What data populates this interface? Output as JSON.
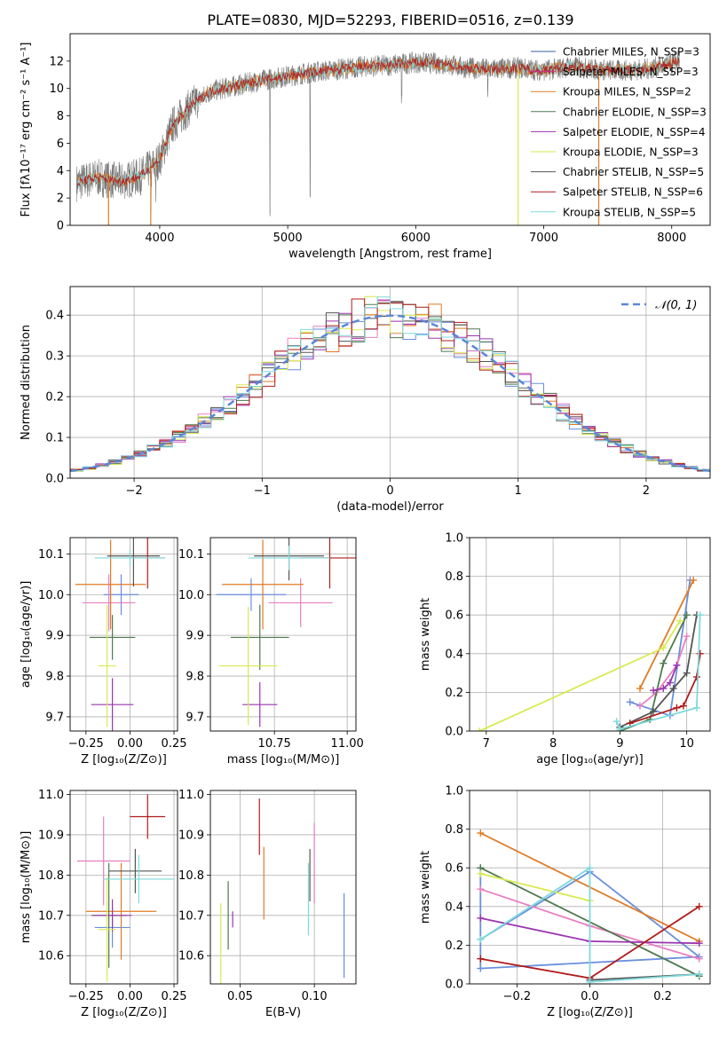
{
  "figure": {
    "title": "PLATE=0830, MJD=52293, FIBERID=0516, z=0.139",
    "colors": [
      "#e07b24",
      "#e07b24",
      "#e07b24",
      "#4f7a4f",
      "#9b35b0",
      "#d9ea52",
      "#555555",
      "#b01c1c",
      "#7fd9dc"
    ]
  },
  "chart_data": [
    {
      "id": "spectrum",
      "type": "line",
      "xlabel": "wavelength [Angstrom, rest frame]",
      "ylabel": "Flux [fλ10⁻¹⁷ erg cm⁻² s⁻¹ A⁻¹]",
      "xlim": [
        3300,
        8300
      ],
      "ylim": [
        0,
        14
      ],
      "xticks": [
        4000,
        5000,
        6000,
        7000,
        8000
      ],
      "yticks": [
        0,
        2,
        4,
        6,
        8,
        10,
        12
      ],
      "grid": false,
      "legend_position": "right",
      "legend": [
        {
          "label": "Chabrier MILES, N_SSP=3",
          "color": "#3b5fa8"
        },
        {
          "label": "Salpeter MILES, N_SSP=3",
          "color": "#d12a8f"
        },
        {
          "label": "Kroupa MILES, N_SSP=2",
          "color": "#e07b24"
        },
        {
          "label": "Chabrier ELODIE, N_SSP=3",
          "color": "#4f7a4f"
        },
        {
          "label": "Salpeter ELODIE, N_SSP=4",
          "color": "#9b35b0"
        },
        {
          "label": "Kroupa ELODIE, N_SSP=3",
          "color": "#d9ea52"
        },
        {
          "label": "Chabrier STELIB, N_SSP=5",
          "color": "#555555"
        },
        {
          "label": "Salpeter STELIB, N_SSP=6",
          "color": "#b01c1c"
        },
        {
          "label": "Kroupa STELIB, N_SSP=5",
          "color": "#7fd9dc"
        }
      ],
      "data_continuum": {
        "x": [
          3350,
          3500,
          3700,
          3850,
          4000,
          4100,
          4250,
          4400,
          4600,
          4800,
          5000,
          5200,
          5400,
          5600,
          5800,
          6000,
          6200,
          6400,
          6600,
          6800,
          7000,
          7200,
          7400,
          7600,
          7800,
          8000,
          8060
        ],
        "y": [
          3.1,
          3.5,
          3.2,
          3.6,
          4.8,
          7.3,
          8.8,
          9.8,
          10.2,
          10.6,
          10.9,
          11.2,
          11.4,
          11.6,
          11.7,
          11.9,
          11.8,
          11.5,
          11.4,
          11.5,
          11.3,
          11.6,
          11.4,
          11.3,
          11.4,
          11.8,
          12.1
        ]
      },
      "absorption_lines": [
        {
          "x": 4861,
          "depth": 10.1
        },
        {
          "x": 5175,
          "depth": 9.3
        },
        {
          "x": 5890,
          "depth": 2.5
        },
        {
          "x": 6563,
          "depth": 2.0
        },
        {
          "x": 3934,
          "depth": 2.3
        },
        {
          "x": 3968,
          "depth": 2.4
        }
      ],
      "masked_ranges": [
        [
          3600,
          3600
        ],
        [
          3930,
          3930
        ],
        [
          6800,
          6800
        ],
        [
          7430,
          7430
        ]
      ]
    },
    {
      "id": "residual-histogram",
      "type": "histogram",
      "xlabel": "(data-model)/error",
      "ylabel": "Normed distribution",
      "xlim": [
        -2.5,
        2.5
      ],
      "ylim": [
        0,
        0.47
      ],
      "xticks": [
        -2,
        -1,
        0,
        1,
        2
      ],
      "yticks": [
        0.0,
        0.1,
        0.2,
        0.3,
        0.4
      ],
      "grid": true,
      "legend_position": "top-right",
      "legend_label": "N(0,1)",
      "reference_curve": "normal(0,1)",
      "bin_width": 0.1,
      "series_colors": [
        "#6a8fdc",
        "#e77fc1",
        "#e07b24",
        "#4f7a4f",
        "#9b35b0",
        "#d9ea52",
        "#555555",
        "#b01c1c",
        "#7fd9dc"
      ]
    },
    {
      "id": "age-vs-Z",
      "type": "errorbar",
      "xlabel": "Z [log₁₀(Z/Z⊙)]",
      "ylabel": "age  [log₁₀(age/yr)]",
      "xlim": [
        -0.34,
        0.27
      ],
      "ylim": [
        9.665,
        10.14
      ],
      "xticks": [
        -0.25,
        0.0,
        0.25
      ],
      "xticklabels": [
        "−0.25",
        "0.00",
        "0.25"
      ],
      "yticks": [
        9.7,
        9.8,
        9.9,
        10.0,
        10.1
      ],
      "grid": true,
      "points": [
        {
          "x": -0.05,
          "y": 10.0,
          "xerr": 0.1,
          "yerr": 0.05,
          "color": "#6a8fdc"
        },
        {
          "x": -0.12,
          "y": 9.98,
          "xerr": 0.15,
          "yerr": 0.07,
          "color": "#e77fc1"
        },
        {
          "x": -0.11,
          "y": 10.025,
          "xerr": 0.2,
          "yerr": 0.11,
          "color": "#e07b24"
        },
        {
          "x": -0.1,
          "y": 9.895,
          "xerr": 0.13,
          "yerr": 0.055,
          "color": "#4f7a4f"
        },
        {
          "x": -0.1,
          "y": 9.73,
          "xerr": 0.12,
          "yerr": 0.065,
          "color": "#9b35b0"
        },
        {
          "x": -0.13,
          "y": 9.825,
          "xerr": 0.05,
          "yerr": 0.15,
          "color": "#d9ea52"
        },
        {
          "x": 0.02,
          "y": 10.095,
          "xerr": 0.15,
          "yerr": 0.075,
          "color": "#555555"
        },
        {
          "x": 0.1,
          "y": 10.09,
          "xerr": 0.1,
          "yerr": 0.075,
          "color": "#b01c1c"
        },
        {
          "x": 0.0,
          "y": 10.09,
          "xerr": 0.2,
          "yerr": 0.02,
          "color": "#7fd9dc"
        }
      ]
    },
    {
      "id": "age-vs-mass",
      "type": "errorbar",
      "xlabel": "mass [log₁₀(M/M⊙)]",
      "ylabel": "",
      "xlim": [
        10.53,
        11.03
      ],
      "ylim": [
        9.665,
        10.14
      ],
      "xticks": [
        10.75,
        11.0
      ],
      "xticklabels": [
        "10.75",
        "11.00"
      ],
      "yticks": [
        9.7,
        9.8,
        9.9,
        10.0,
        10.1
      ],
      "grid": true,
      "points": [
        {
          "x": 10.67,
          "y": 10.0,
          "xerr": 0.12,
          "yerr": 0.04,
          "color": "#6a8fdc"
        },
        {
          "x": 10.84,
          "y": 9.98,
          "xerr": 0.11,
          "yerr": 0.06,
          "color": "#e77fc1"
        },
        {
          "x": 10.71,
          "y": 10.025,
          "xerr": 0.14,
          "yerr": 0.11,
          "color": "#e07b24"
        },
        {
          "x": 10.7,
          "y": 9.895,
          "xerr": 0.1,
          "yerr": 0.08,
          "color": "#4f7a4f"
        },
        {
          "x": 10.7,
          "y": 9.73,
          "xerr": 0.06,
          "yerr": 0.055,
          "color": "#9b35b0"
        },
        {
          "x": 10.66,
          "y": 9.825,
          "xerr": 0.1,
          "yerr": 0.145,
          "color": "#d9ea52"
        },
        {
          "x": 10.8,
          "y": 10.095,
          "xerr": 0.12,
          "yerr": 0.06,
          "color": "#555555"
        },
        {
          "x": 10.94,
          "y": 10.09,
          "xerr": 0.1,
          "yerr": 0.075,
          "color": "#b01c1c"
        },
        {
          "x": 10.8,
          "y": 10.09,
          "xerr": 0.14,
          "yerr": 0.03,
          "color": "#7fd9dc"
        }
      ]
    },
    {
      "id": "weight-vs-age",
      "type": "line",
      "xlabel": "age  [log₁₀(age/yr)]",
      "ylabel": "mass weight",
      "xlim": [
        6.75,
        10.35
      ],
      "ylim": [
        0,
        1
      ],
      "xticks": [
        7,
        8,
        9,
        10
      ],
      "yticks": [
        0.0,
        0.2,
        0.4,
        0.6,
        0.8,
        1.0
      ],
      "grid": true,
      "series": [
        {
          "color": "#6a8fdc",
          "x": [
            9.15,
            9.75,
            10.05
          ],
          "y": [
            0.15,
            0.08,
            0.78
          ]
        },
        {
          "color": "#e77fc1",
          "x": [
            9.3,
            9.55,
            9.85,
            10.0
          ],
          "y": [
            0.13,
            0.2,
            0.34,
            0.49
          ]
        },
        {
          "color": "#e07b24",
          "x": [
            9.3,
            10.1
          ],
          "y": [
            0.22,
            0.78
          ]
        },
        {
          "color": "#4f7a4f",
          "x": [
            9.0,
            9.45,
            9.65,
            10.0
          ],
          "y": [
            0.0,
            0.06,
            0.35,
            0.6
          ]
        },
        {
          "color": "#9b35b0",
          "x": [
            9.5,
            9.65,
            9.75,
            9.85
          ],
          "y": [
            0.21,
            0.22,
            0.25,
            0.34
          ]
        },
        {
          "color": "#d9ea52",
          "x": [
            6.9,
            9.65,
            9.9
          ],
          "y": [
            0.0,
            0.43,
            0.57
          ]
        },
        {
          "color": "#555555",
          "x": [
            9.0,
            9.5,
            9.8,
            10.0,
            10.15
          ],
          "y": [
            0.02,
            0.1,
            0.22,
            0.3,
            0.6
          ]
        },
        {
          "color": "#b01c1c",
          "x": [
            9.15,
            9.85,
            9.95,
            10.15,
            10.2
          ],
          "y": [
            0.04,
            0.12,
            0.13,
            0.28,
            0.4
          ]
        },
        {
          "color": "#7fd9dc",
          "x": [
            8.95,
            9.0,
            10.15,
            10.2
          ],
          "y": [
            0.05,
            0.01,
            0.12,
            0.6
          ]
        }
      ]
    },
    {
      "id": "mass-vs-Z",
      "type": "errorbar",
      "xlabel": "Z [log₁₀(Z/Z⊙)]",
      "ylabel": "mass [log₁₀(M/M⊙)]",
      "xlim": [
        -0.34,
        0.27
      ],
      "ylim": [
        10.53,
        11.01
      ],
      "xticks": [
        -0.25,
        0.0,
        0.25
      ],
      "xticklabels": [
        "−0.25",
        "0.00",
        "0.25"
      ],
      "yticks": [
        10.6,
        10.7,
        10.8,
        10.9,
        11.0
      ],
      "grid": true,
      "points": [
        {
          "x": -0.1,
          "y": 10.67,
          "xerr": 0.1,
          "yerr": 0.05,
          "color": "#6a8fdc"
        },
        {
          "x": -0.15,
          "y": 10.835,
          "xerr": 0.15,
          "yerr": 0.11,
          "color": "#e77fc1"
        },
        {
          "x": -0.05,
          "y": 10.71,
          "xerr": 0.2,
          "yerr": 0.12,
          "color": "#e07b24"
        },
        {
          "x": -0.12,
          "y": 10.7,
          "xerr": 0.1,
          "yerr": 0.13,
          "color": "#4f7a4f"
        },
        {
          "x": -0.1,
          "y": 10.7,
          "xerr": 0.11,
          "yerr": 0.04,
          "color": "#9b35b0"
        },
        {
          "x": -0.13,
          "y": 10.665,
          "xerr": 0.05,
          "yerr": 0.13,
          "color": "#d9ea52"
        },
        {
          "x": 0.03,
          "y": 10.81,
          "xerr": 0.15,
          "yerr": 0.055,
          "color": "#555555"
        },
        {
          "x": 0.1,
          "y": 10.945,
          "xerr": 0.1,
          "yerr": 0.055,
          "color": "#b01c1c"
        },
        {
          "x": 0.05,
          "y": 10.79,
          "xerr": 0.2,
          "yerr": 0.06,
          "color": "#7fd9dc"
        }
      ]
    },
    {
      "id": "mass-vs-EBV",
      "type": "errorbar",
      "xlabel": "E(B-V)",
      "ylabel": "",
      "xlim": [
        0.03,
        0.128
      ],
      "ylim": [
        10.53,
        11.01
      ],
      "xticks": [
        0.05,
        0.1
      ],
      "xticklabels": [
        "0.05",
        "0.10"
      ],
      "yticks": [
        10.6,
        10.7,
        10.8,
        10.9,
        11.0
      ],
      "grid": true,
      "points": [
        {
          "x": 0.12,
          "y": 10.65,
          "xerr": 0,
          "yerr": 0.105,
          "color": "#6a8fdc"
        },
        {
          "x": 0.1,
          "y": 10.83,
          "xerr": 0,
          "yerr": 0.1,
          "color": "#e77fc1"
        },
        {
          "x": 0.066,
          "y": 10.78,
          "xerr": 0,
          "yerr": 0.09,
          "color": "#e07b24"
        },
        {
          "x": 0.042,
          "y": 10.7,
          "xerr": 0,
          "yerr": 0.085,
          "color": "#4f7a4f"
        },
        {
          "x": 0.045,
          "y": 10.69,
          "xerr": 0,
          "yerr": 0.02,
          "color": "#9b35b0"
        },
        {
          "x": 0.037,
          "y": 10.63,
          "xerr": 0,
          "yerr": 0.1,
          "color": "#d9ea52"
        },
        {
          "x": 0.097,
          "y": 10.8,
          "xerr": 0,
          "yerr": 0.065,
          "color": "#555555"
        },
        {
          "x": 0.063,
          "y": 10.92,
          "xerr": 0,
          "yerr": 0.07,
          "color": "#b01c1c"
        },
        {
          "x": 0.096,
          "y": 10.74,
          "xerr": 0,
          "yerr": 0.09,
          "color": "#7fd9dc"
        }
      ]
    },
    {
      "id": "weight-vs-Z",
      "type": "line",
      "xlabel": "Z [log₁₀(Z/Z⊙)]",
      "ylabel": "mass weight",
      "xlim": [
        -0.33,
        0.33
      ],
      "ylim": [
        0,
        1
      ],
      "xticks": [
        -0.2,
        0.0,
        0.2
      ],
      "xticklabels": [
        "−0.2",
        "0.0",
        "0.2"
      ],
      "yticks": [
        0.0,
        0.2,
        0.4,
        0.6,
        0.8,
        1.0
      ],
      "grid": true,
      "series": [
        {
          "color": "#6a8fdc",
          "x": [
            -0.3,
            -0.3,
            0.3,
            0.0,
            -0.3
          ],
          "y": [
            0.6,
            0.08,
            0.14,
            0.58,
            0.23
          ]
        },
        {
          "color": "#e77fc1",
          "x": [
            -0.3,
            0.0,
            0.3
          ],
          "y": [
            0.49,
            0.3,
            0.13
          ]
        },
        {
          "color": "#e07b24",
          "x": [
            -0.3,
            0.3
          ],
          "y": [
            0.78,
            0.22
          ]
        },
        {
          "color": "#4f7a4f",
          "x": [
            -0.3,
            0.3
          ],
          "y": [
            0.6,
            0.04
          ]
        },
        {
          "color": "#9b35b0",
          "x": [
            -0.3,
            0.0,
            0.3
          ],
          "y": [
            0.34,
            0.22,
            0.21
          ]
        },
        {
          "color": "#d9ea52",
          "x": [
            -0.3,
            0.0
          ],
          "y": [
            0.57,
            0.43
          ]
        },
        {
          "color": "#555555",
          "x": [
            0.0,
            0.3
          ],
          "y": [
            0.02,
            0.05
          ]
        },
        {
          "color": "#b01c1c",
          "x": [
            -0.3,
            0.0,
            0.3
          ],
          "y": [
            0.13,
            0.03,
            0.4
          ]
        },
        {
          "color": "#7fd9dc",
          "x": [
            -0.3,
            0.0,
            0.0,
            0.3
          ],
          "y": [
            0.23,
            0.6,
            0.01,
            0.05
          ]
        }
      ]
    }
  ]
}
